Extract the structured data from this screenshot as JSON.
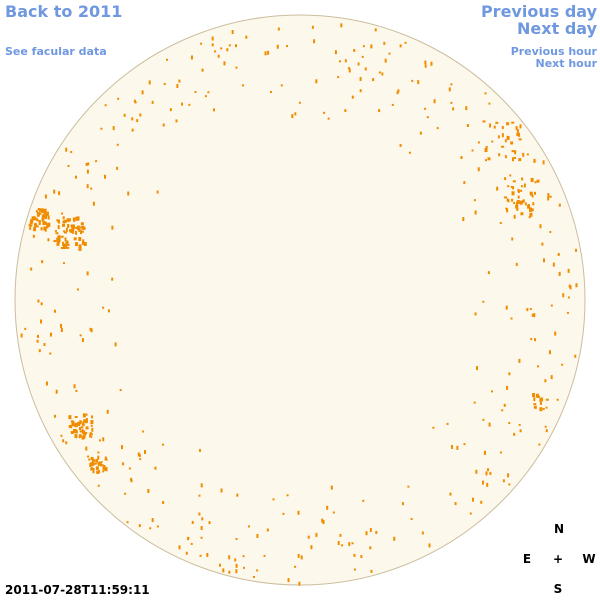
{
  "nav": {
    "back": "Back to 2011",
    "facular": "See facular data",
    "previous_day": "Previous day",
    "next_day": "Next day",
    "previous_hour": "Previous hour",
    "next_hour": "Next hour"
  },
  "timestamp": "2011-07-28T11:59:11",
  "compass": {
    "north": "N",
    "east": "E",
    "center": "+",
    "west": "W",
    "south": "S"
  }
}
